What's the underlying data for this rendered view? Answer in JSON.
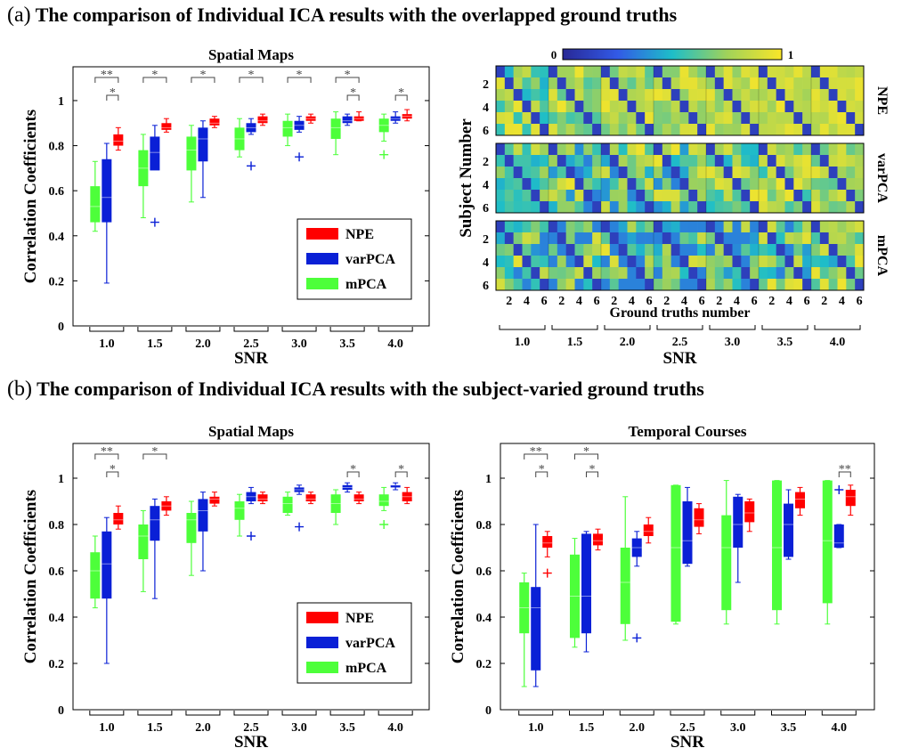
{
  "header_a": {
    "tag": "(a)",
    "text": "The comparison of Individual ICA results with the overlapped  ground truths"
  },
  "header_b": {
    "tag": "(b)",
    "text": "The comparison of Individual ICA results with the subject-varied ground truths"
  },
  "colors": {
    "NPE": "#ff0000",
    "varPCA": "#0a20d6",
    "mPCA": "#4dff3a"
  },
  "chart_data": [
    {
      "id": "a-spatial",
      "type": "box",
      "title": "Spatial Maps",
      "xlabel": "SNR",
      "ylabel": "Correlation Coefficients",
      "categories": [
        "1.0",
        "1.5",
        "2.0",
        "2.5",
        "3.0",
        "3.5",
        "4.0"
      ],
      "ylim": [
        0,
        1.15
      ],
      "yticks": [
        "0",
        "0.2",
        "0.4",
        "0.6",
        "0.8",
        "1"
      ],
      "legend": {
        "position": "bottom-right",
        "entries": [
          "NPE",
          "varPCA",
          "mPCA"
        ]
      },
      "series": [
        {
          "name": "mPCA",
          "boxes": [
            [
              0.42,
              0.46,
              0.53,
              0.62,
              0.73
            ],
            [
              0.48,
              0.62,
              0.7,
              0.78,
              0.85
            ],
            [
              0.55,
              0.69,
              0.78,
              0.84,
              0.89
            ],
            [
              0.75,
              0.78,
              0.83,
              0.88,
              0.92
            ],
            [
              0.8,
              0.84,
              0.88,
              0.91,
              0.94
            ],
            [
              0.76,
              0.83,
              0.88,
              0.92,
              0.95
            ],
            [
              0.82,
              0.86,
              0.89,
              0.92,
              0.94
            ]
          ],
          "outliers": [
            [],
            [],
            [],
            [],
            [],
            [],
            [
              0.76
            ]
          ]
        },
        {
          "name": "varPCA",
          "boxes": [
            [
              0.19,
              0.46,
              0.57,
              0.74,
              0.81
            ],
            [
              0.7,
              0.69,
              0.77,
              0.84,
              0.89
            ],
            [
              0.57,
              0.73,
              0.83,
              0.88,
              0.91
            ],
            [
              0.85,
              0.86,
              0.88,
              0.9,
              0.92
            ],
            [
              0.86,
              0.87,
              0.89,
              0.91,
              0.93
            ],
            [
              0.89,
              0.9,
              0.91,
              0.93,
              0.94
            ],
            [
              0.9,
              0.91,
              0.92,
              0.93,
              0.95
            ]
          ],
          "outliers": [
            [],
            [
              0.46
            ],
            [],
            [
              0.71
            ],
            [
              0.75
            ],
            [],
            []
          ]
        },
        {
          "name": "NPE",
          "boxes": [
            [
              0.78,
              0.8,
              0.82,
              0.85,
              0.88
            ],
            [
              0.86,
              0.87,
              0.88,
              0.9,
              0.92
            ],
            [
              0.88,
              0.89,
              0.9,
              0.92,
              0.93
            ],
            [
              0.89,
              0.9,
              0.91,
              0.93,
              0.94
            ],
            [
              0.9,
              0.91,
              0.92,
              0.93,
              0.94
            ],
            [
              0.91,
              0.91,
              0.92,
              0.93,
              0.95
            ],
            [
              0.91,
              0.92,
              0.93,
              0.94,
              0.96
            ]
          ],
          "outliers": [
            [],
            [],
            [],
            [],
            [],
            [],
            []
          ]
        }
      ],
      "significance": [
        {
          "group": 0,
          "pair": "mPCA-NPE",
          "label": "**"
        },
        {
          "group": 0,
          "pair": "varPCA-NPE",
          "label": "*"
        },
        {
          "group": 1,
          "pair": "mPCA-NPE",
          "label": "*"
        },
        {
          "group": 2,
          "pair": "mPCA-NPE",
          "label": "*"
        },
        {
          "group": 3,
          "pair": "mPCA-NPE",
          "label": "*"
        },
        {
          "group": 4,
          "pair": "mPCA-NPE",
          "label": "*"
        },
        {
          "group": 5,
          "pair": "mPCA-NPE",
          "label": "*"
        },
        {
          "group": 5,
          "pair": "varPCA-NPE",
          "label": "*"
        },
        {
          "group": 6,
          "pair": "varPCA-NPE",
          "label": "*"
        }
      ]
    },
    {
      "id": "a-heatmap",
      "type": "heatmap",
      "xlabel": "Ground truths number",
      "ylabel": "Subject Number",
      "xticks": [
        "2",
        "4",
        "6"
      ],
      "yticks": [
        "2",
        "4",
        "6"
      ],
      "colorbar": {
        "min": "0",
        "max": "1"
      },
      "panels": [
        "NPE",
        "varPCA",
        "mPCA"
      ],
      "group_axis": {
        "label": "SNR",
        "categories": [
          "1.0",
          "1.5",
          "2.0",
          "2.5",
          "3.0",
          "3.5",
          "4.0"
        ]
      },
      "cells_per_group": 6,
      "subjects": 6
    },
    {
      "id": "b-spatial",
      "type": "box",
      "title": "Spatial Maps",
      "xlabel": "SNR",
      "ylabel": "Correlation Coefficients",
      "categories": [
        "1.0",
        "1.5",
        "2.0",
        "2.5",
        "3.0",
        "3.5",
        "4.0"
      ],
      "ylim": [
        0,
        1.15
      ],
      "yticks": [
        "0",
        "0.2",
        "0.4",
        "0.6",
        "0.8",
        "1"
      ],
      "legend": {
        "position": "bottom-right",
        "entries": [
          "NPE",
          "varPCA",
          "mPCA"
        ]
      },
      "series": [
        {
          "name": "mPCA",
          "boxes": [
            [
              0.44,
              0.48,
              0.6,
              0.68,
              0.75
            ],
            [
              0.51,
              0.65,
              0.75,
              0.8,
              0.86
            ],
            [
              0.58,
              0.72,
              0.82,
              0.85,
              0.9
            ],
            [
              0.75,
              0.82,
              0.87,
              0.9,
              0.93
            ],
            [
              0.84,
              0.85,
              0.89,
              0.92,
              0.94
            ],
            [
              0.8,
              0.85,
              0.89,
              0.93,
              0.95
            ],
            [
              0.86,
              0.88,
              0.9,
              0.93,
              0.96
            ]
          ],
          "outliers": [
            [],
            [],
            [],
            [],
            [],
            [],
            [
              0.8
            ]
          ]
        },
        {
          "name": "varPCA",
          "boxes": [
            [
              0.2,
              0.48,
              0.63,
              0.77,
              0.83
            ],
            [
              0.48,
              0.73,
              0.82,
              0.88,
              0.91
            ],
            [
              0.6,
              0.77,
              0.86,
              0.91,
              0.94
            ],
            [
              0.89,
              0.9,
              0.92,
              0.94,
              0.96
            ],
            [
              0.93,
              0.94,
              0.95,
              0.96,
              0.97
            ],
            [
              0.94,
              0.95,
              0.96,
              0.97,
              0.98
            ],
            [
              0.95,
              0.96,
              0.97,
              0.97,
              0.98
            ]
          ],
          "outliers": [
            [],
            [],
            [],
            [
              0.75
            ],
            [
              0.79
            ],
            [],
            []
          ]
        },
        {
          "name": "NPE",
          "boxes": [
            [
              0.78,
              0.8,
              0.82,
              0.85,
              0.88
            ],
            [
              0.84,
              0.86,
              0.88,
              0.9,
              0.92
            ],
            [
              0.88,
              0.89,
              0.91,
              0.92,
              0.94
            ],
            [
              0.89,
              0.9,
              0.91,
              0.93,
              0.94
            ],
            [
              0.89,
              0.9,
              0.91,
              0.93,
              0.94
            ],
            [
              0.89,
              0.9,
              0.91,
              0.93,
              0.94
            ],
            [
              0.89,
              0.9,
              0.92,
              0.94,
              0.96
            ]
          ],
          "outliers": [
            [],
            [],
            [],
            [],
            [],
            [],
            []
          ]
        }
      ],
      "significance": [
        {
          "group": 0,
          "pair": "mPCA-NPE",
          "label": "**"
        },
        {
          "group": 0,
          "pair": "varPCA-NPE",
          "label": "*"
        },
        {
          "group": 1,
          "pair": "mPCA-NPE",
          "label": "*"
        },
        {
          "group": 5,
          "pair": "varPCA-NPE",
          "label": "*"
        },
        {
          "group": 6,
          "pair": "varPCA-NPE",
          "label": "*"
        }
      ]
    },
    {
      "id": "b-temporal",
      "type": "box",
      "title": "Temporal Courses",
      "xlabel": "SNR",
      "ylabel": "Correlation Coefficients",
      "categories": [
        "1.0",
        "1.5",
        "2.0",
        "2.5",
        "3.0",
        "3.5",
        "4.0"
      ],
      "ylim": [
        0,
        1.15
      ],
      "yticks": [
        "0",
        "0.2",
        "0.4",
        "0.6",
        "0.8",
        "1"
      ],
      "series": [
        {
          "name": "mPCA",
          "boxes": [
            [
              0.1,
              0.33,
              0.44,
              0.55,
              0.59
            ],
            [
              0.27,
              0.31,
              0.49,
              0.67,
              0.74
            ],
            [
              0.3,
              0.37,
              0.55,
              0.7,
              0.92
            ],
            [
              0.37,
              0.38,
              0.7,
              0.97,
              0.97
            ],
            [
              0.37,
              0.43,
              0.7,
              0.84,
              0.99
            ],
            [
              0.37,
              0.43,
              0.7,
              0.99,
              0.99
            ],
            [
              0.37,
              0.46,
              0.73,
              0.99,
              0.99
            ]
          ],
          "outliers": [
            [],
            [],
            [],
            [],
            [],
            [],
            []
          ]
        },
        {
          "name": "varPCA",
          "boxes": [
            [
              0.1,
              0.17,
              0.44,
              0.53,
              0.8
            ],
            [
              0.25,
              0.33,
              0.49,
              0.76,
              0.77
            ],
            [
              0.62,
              0.66,
              0.7,
              0.74,
              0.77
            ],
            [
              0.62,
              0.63,
              0.73,
              0.9,
              0.96
            ],
            [
              0.55,
              0.7,
              0.8,
              0.92,
              0.93
            ],
            [
              0.65,
              0.66,
              0.8,
              0.89,
              0.95
            ],
            [
              0.7,
              0.7,
              0.72,
              0.8,
              0.8
            ]
          ],
          "outliers": [
            [],
            [],
            [
              0.31
            ],
            [],
            [],
            [],
            [
              0.95
            ]
          ]
        },
        {
          "name": "NPE",
          "boxes": [
            [
              0.66,
              0.7,
              0.72,
              0.75,
              0.77
            ],
            [
              0.69,
              0.71,
              0.73,
              0.76,
              0.78
            ],
            [
              0.72,
              0.75,
              0.77,
              0.8,
              0.83
            ],
            [
              0.76,
              0.79,
              0.82,
              0.87,
              0.89
            ],
            [
              0.77,
              0.81,
              0.85,
              0.9,
              0.91
            ],
            [
              0.84,
              0.87,
              0.91,
              0.94,
              0.96
            ],
            [
              0.84,
              0.88,
              0.92,
              0.95,
              0.97
            ]
          ],
          "outliers": [
            [
              0.59
            ],
            [],
            [],
            [],
            [],
            [],
            []
          ]
        }
      ],
      "significance": [
        {
          "group": 0,
          "pair": "mPCA-NPE",
          "label": "**"
        },
        {
          "group": 0,
          "pair": "varPCA-NPE",
          "label": "*"
        },
        {
          "group": 1,
          "pair": "mPCA-NPE",
          "label": "*"
        },
        {
          "group": 1,
          "pair": "varPCA-NPE",
          "label": "*"
        },
        {
          "group": 6,
          "pair": "varPCA-NPE",
          "label": "**"
        }
      ]
    }
  ]
}
